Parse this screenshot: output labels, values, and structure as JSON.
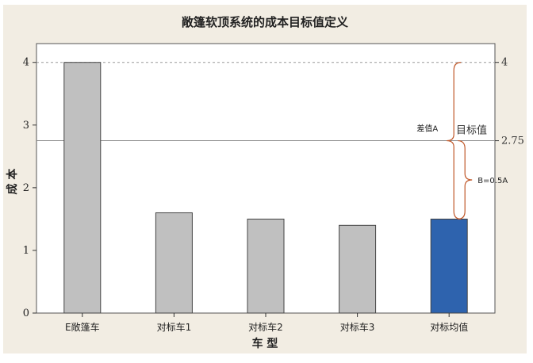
{
  "chart_data": {
    "type": "bar",
    "title": "敞篷软顶系统的成本目标值定义",
    "xlabel": "车 型",
    "ylabel": "成 本",
    "categories": [
      "E敞篷车",
      "对标车1",
      "对标车2",
      "对标车3",
      "对标均值"
    ],
    "values": [
      4.0,
      1.6,
      1.5,
      1.4,
      1.5
    ],
    "ylim": [
      0,
      4.3
    ],
    "yticks": [
      "0",
      "1",
      "2",
      "3",
      "4"
    ],
    "bar_colors": [
      "#c0c0c0",
      "#c0c0c0",
      "#c0c0c0",
      "#c0c0c0",
      "#2e63ae"
    ],
    "reference_lines": [
      {
        "value": 4,
        "label": "4",
        "style": "dashed"
      },
      {
        "value": 2.75,
        "label": "2.75",
        "style": "solid",
        "name": "目标值"
      }
    ],
    "annotations": [
      {
        "text": "差值A",
        "from": 1.5,
        "to": 4,
        "bracket_color": "#c0582a"
      },
      {
        "text": "B=0.5A",
        "from": 1.5,
        "to": 2.75,
        "bracket_color": "#c0582a"
      }
    ],
    "grid": false
  }
}
